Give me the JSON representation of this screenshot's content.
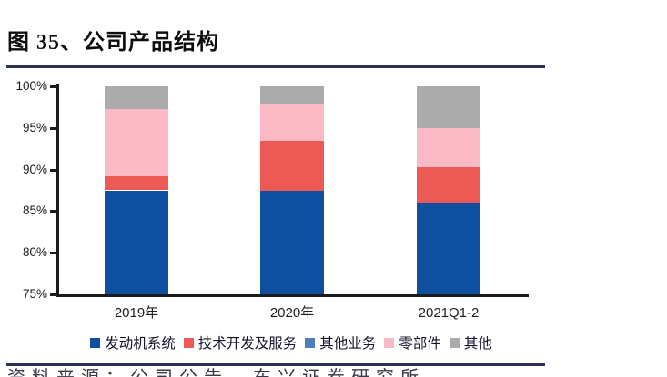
{
  "figure": {
    "title": "图 35、公司产品结构",
    "source_note_partial": "资料来源：公司公告，东兴证券研究所"
  },
  "colors": {
    "divider_rule": "#2d3352",
    "axis": "#1c1c1c"
  },
  "chart_data": {
    "type": "bar",
    "stacked": true,
    "title": "公司产品结构",
    "categories": [
      "2019年",
      "2020年",
      "2021Q1-2"
    ],
    "series": [
      {
        "name": "发动机系统",
        "color": "#0f4fa0",
        "values": [
          87.5,
          87.4,
          85.9
        ]
      },
      {
        "name": "技术开发及服务",
        "color": "#ed5a55",
        "values": [
          1.7,
          6.0,
          4.4
        ]
      },
      {
        "name": "其他业务",
        "color": "#4f7fbf",
        "values": [
          0,
          0,
          0
        ]
      },
      {
        "name": "零部件",
        "color": "#f9bac6",
        "values": [
          8.1,
          4.5,
          4.7
        ]
      },
      {
        "name": "其他",
        "color": "#ababab",
        "values": [
          2.7,
          2.1,
          5.0
        ]
      }
    ],
    "unit": "%",
    "ylim": [
      75,
      100
    ],
    "yticks": [
      100,
      95,
      90,
      85,
      80,
      75
    ],
    "ytick_labels": [
      "100%",
      "95%",
      "90%",
      "85%",
      "80%",
      "75%"
    ],
    "xlabel": "",
    "ylabel": "",
    "grid": false,
    "legend_position": "bottom"
  }
}
